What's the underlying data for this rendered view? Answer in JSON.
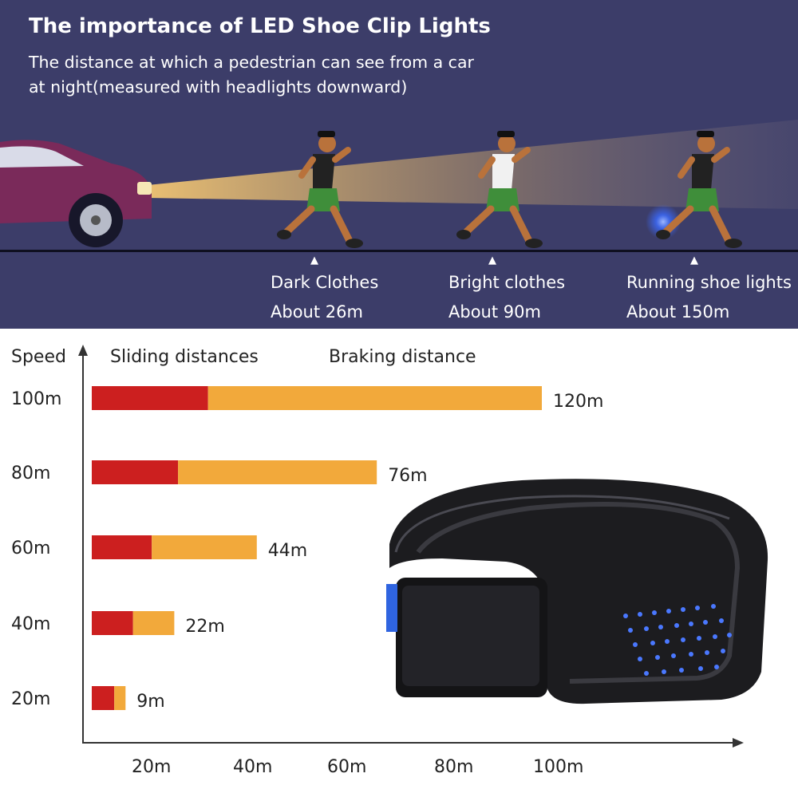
{
  "header": {
    "title": "The importance of LED Shoe Clip Lights",
    "subtitle_line1": "The distance at which a pedestrian can see from a car",
    "subtitle_line2": "at night(measured with headlights downward)"
  },
  "visibility": [
    {
      "label": "Dark Clothes",
      "distance": "About 26m"
    },
    {
      "label": "Bright clothes",
      "distance": "About 90m"
    },
    {
      "label": "Running shoe lights",
      "distance": "About 150m"
    }
  ],
  "colors": {
    "background": "#3c3d69",
    "sliding": "#cc1f1f",
    "braking": "#f2a93b",
    "led": "#3b6bff"
  },
  "chart_data": {
    "type": "bar",
    "stacked": true,
    "orientation": "horizontal",
    "ylabel": "Speed",
    "categories": [
      "100m",
      "80m",
      "60m",
      "40m",
      "20m"
    ],
    "series": [
      {
        "name": "Sliding distances",
        "values": [
          31,
          23,
          16,
          11,
          6
        ]
      },
      {
        "name": "Braking distance",
        "values": [
          89,
          53,
          28,
          11,
          3
        ]
      }
    ],
    "total_labels": [
      "120m",
      "76m",
      "44m",
      "22m",
      "9m"
    ],
    "x_ticks": [
      "20m",
      "40m",
      "60m",
      "80m",
      "100m"
    ],
    "x_tick_values": [
      20,
      40,
      60,
      80,
      100
    ],
    "xlim": [
      0,
      130
    ]
  }
}
